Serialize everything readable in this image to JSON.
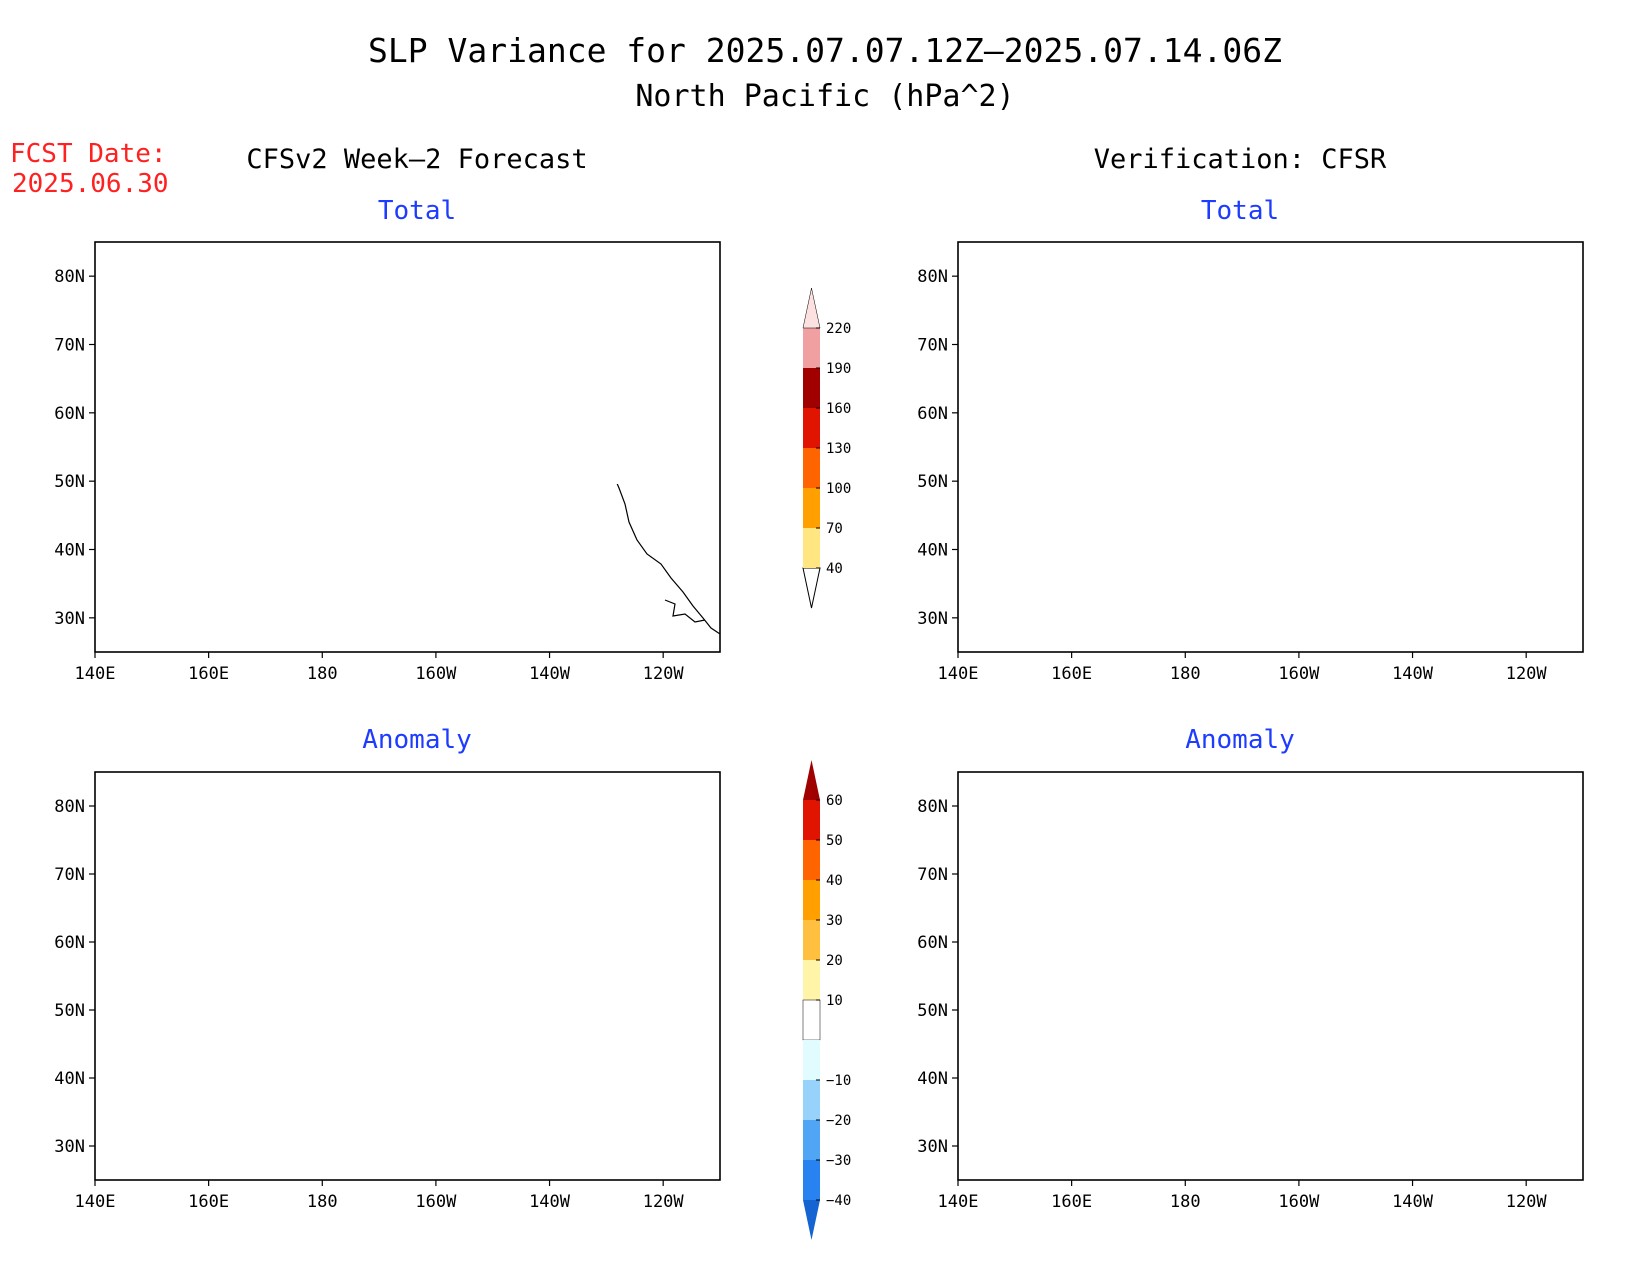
{
  "title": {
    "line1": "SLP Variance for 2025.07.07.12Z–2025.07.14.06Z",
    "line2": "North Pacific (hPa^2)"
  },
  "fcst": {
    "label": "FCST Date:",
    "date": "2025.06.30"
  },
  "columns": {
    "forecast": "CFSv2 Week–2 Forecast",
    "verification": "Verification: CFSR"
  },
  "panels": {
    "forecast_total": {
      "title": "Total"
    },
    "verif_total": {
      "title": "Total"
    },
    "forecast_anomaly": {
      "title": "Anomaly"
    },
    "verif_anomaly": {
      "title": "Anomaly"
    }
  },
  "axes": {
    "lat_labels": [
      "80N",
      "70N",
      "60N",
      "50N",
      "40N",
      "30N"
    ],
    "lon_labels": [
      "140E",
      "160E",
      "180",
      "160W",
      "140W",
      "120W"
    ],
    "lat_range": [
      25,
      85
    ],
    "lon_range_east": [
      140,
      250
    ]
  },
  "colorbars": {
    "total": {
      "labels": [
        "40",
        "70",
        "100",
        "130",
        "160",
        "190",
        "220"
      ],
      "colors": [
        "#ffe680",
        "#ffa000",
        "#ff6400",
        "#e01400",
        "#a00000",
        "#f0a0a0",
        "#fde0e0"
      ]
    },
    "anomaly": {
      "labels": [
        "60",
        "50",
        "40",
        "30",
        "20",
        "10",
        "−10",
        "−20",
        "−30",
        "−40"
      ],
      "colors": [
        "#a00000",
        "#e01400",
        "#ff6400",
        "#ffa000",
        "#ffc040",
        "#fff4a8",
        "#ffffff",
        "#e0fcff",
        "#96d2fa",
        "#50a5f5",
        "#2882f0",
        "#1464d2"
      ]
    }
  },
  "colors": {
    "title": "#000000",
    "panel_title": "#1e3cff",
    "fcst": "#ff2020",
    "coast": "#000000"
  }
}
